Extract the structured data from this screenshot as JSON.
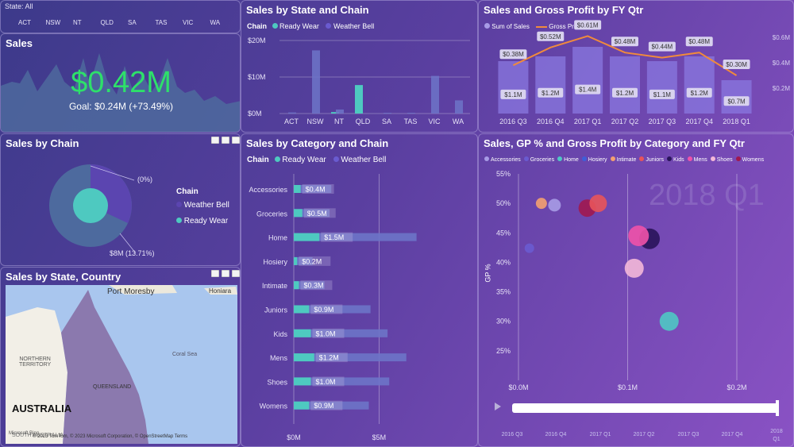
{
  "slicer": {
    "title": "State: All",
    "states": [
      "ACT",
      "NSW",
      "NT",
      "QLD",
      "SA",
      "TAS",
      "VIC",
      "WA"
    ]
  },
  "sales_card": {
    "title": "Sales",
    "value": "$0.42M",
    "goal": "Goal: $0.24M (+73.49%)"
  },
  "chain_pie": {
    "title": "Sales by Chain",
    "legend_title": "Chain",
    "legend": [
      "Weather Bell",
      "Ready Wear"
    ],
    "label_small": "(0%)",
    "label_big": "$8M (13.71%)",
    "colors": {
      "weather_bell": "#5b45b0",
      "ready_wear": "#4ec9c0"
    }
  },
  "map": {
    "title": "Sales by State, Country",
    "labels": {
      "port_moresby": "Port Moresby",
      "honiara": "Honiara",
      "northern_territory_1": "NORTHERN",
      "northern_territory_2": "TERRITORY",
      "coral_sea": "Coral Sea",
      "queensland": "QUEENSLAND",
      "australia": "AUSTRALIA",
      "south_australia": "SOUTH AUSTRALIA"
    },
    "attribution": "© 2023 TomTom, © 2023 Microsoft Corporation, © OpenStreetMap  Terms",
    "bing": "Microsoft Bing"
  },
  "state_chain": {
    "title": "Sales by State and Chain",
    "legend_title": "Chain",
    "legend": [
      "Ready Wear",
      "Weather Bell"
    ]
  },
  "category_chain": {
    "title": "Sales by Category and Chain",
    "legend_title": "Chain",
    "legend": [
      "Ready Wear",
      "Weather Bell"
    ]
  },
  "fy_qtr": {
    "title": "Sales and Gross Profit by FY Qtr",
    "legend": [
      "Sum of Sales",
      "Gross Profit"
    ],
    "right_ticks": [
      "$0.6M",
      "$0.4M",
      "$0.2M"
    ]
  },
  "scatter": {
    "title": "Sales, GP % and Gross Profit by Category and FY Qtr",
    "legend": [
      "Accessories",
      "Groceries",
      "Home",
      "Hosiery",
      "Intimate",
      "Juniors",
      "Kids",
      "Mens",
      "Shoes",
      "Womens"
    ],
    "legend_colors": [
      "#a79be6",
      "#6a5bd0",
      "#4fc8c4",
      "#3f5ed8",
      "#f4a070",
      "#e8545a",
      "#2a145a",
      "#f052a8",
      "#f4b8d8",
      "#a01850"
    ],
    "watermark": "2018 Q1",
    "ylabel": "GP %",
    "play_labels": [
      "2016 Q3",
      "2016 Q4",
      "2017 Q1",
      "2017 Q2",
      "2017 Q3",
      "2017 Q4",
      "2018",
      "Q1"
    ]
  },
  "chart_data": [
    {
      "type": "bar",
      "title": "Sales by State and Chain",
      "categories": [
        "ACT",
        "NSW",
        "NT",
        "QLD",
        "SA",
        "TAS",
        "VIC",
        "WA"
      ],
      "series": [
        {
          "name": "Ready Wear",
          "values": [
            0,
            0,
            0.4,
            7.8,
            0,
            0,
            0,
            0
          ]
        },
        {
          "name": "Weather Bell",
          "values": [
            0.3,
            17.3,
            1.1,
            0,
            0.2,
            0.2,
            10.3,
            3.6
          ]
        }
      ],
      "yticks": [
        "$0M",
        "$10M",
        "$20M"
      ],
      "ylim": [
        0,
        20
      ]
    },
    {
      "type": "bar",
      "title": "Sales by Category and Chain",
      "categories": [
        "Accessories",
        "Groceries",
        "Home",
        "Hosiery",
        "Intimate",
        "Juniors",
        "Kids",
        "Mens",
        "Shoes",
        "Womens"
      ],
      "series": [
        {
          "name": "Ready Wear",
          "values": [
            0.4,
            0.5,
            1.5,
            0.2,
            0.3,
            0.9,
            1.0,
            1.2,
            1.0,
            0.9
          ]
        },
        {
          "name": "Weather Bell",
          "values": [
            2.2,
            2.1,
            7.2,
            1.1,
            1.8,
            4.5,
            5.5,
            6.6,
            5.6,
            4.4
          ]
        }
      ],
      "labels": [
        "$0.4M",
        "$0.5M",
        "$1.5M",
        "$0.2M",
        "$0.3M",
        "$0.9M",
        "$1.0M",
        "$1.2M",
        "$1.0M",
        "$0.9M"
      ],
      "xticks": [
        "$0M",
        "$5M"
      ],
      "xlim": [
        0,
        9.5
      ]
    },
    {
      "type": "bar",
      "title": "Sales and Gross Profit by FY Qtr",
      "categories": [
        "2016 Q3",
        "2016 Q4",
        "2017 Q1",
        "2017 Q2",
        "2017 Q3",
        "2017 Q4",
        "2018 Q1"
      ],
      "series": [
        {
          "name": "Sum of Sales",
          "values": [
            1.1,
            1.2,
            1.4,
            1.2,
            1.1,
            1.2,
            0.7
          ],
          "labels": [
            "$1.1M",
            "$1.2M",
            "$1.4M",
            "$1.2M",
            "$1.1M",
            "$1.2M",
            "$0.7M"
          ]
        },
        {
          "name": "Gross Profit",
          "values": [
            0.38,
            0.52,
            0.61,
            0.48,
            0.44,
            0.48,
            0.3
          ],
          "labels": [
            "$0.38M",
            "$0.52M",
            "$0.61M",
            "$0.48M",
            "$0.44M",
            "$0.48M",
            "$0.30M"
          ]
        }
      ]
    },
    {
      "type": "scatter",
      "title": "Sales, GP % and Gross Profit by Category and FY Qtr",
      "xticks": [
        "$0.0M",
        "$0.1M",
        "$0.2M"
      ],
      "yticks": [
        "55%",
        "50%",
        "45%",
        "40%",
        "35%",
        "30%",
        "25%"
      ],
      "xlim": [
        0,
        0.24
      ],
      "ylim": [
        20,
        55
      ],
      "points": [
        {
          "name": "Groceries",
          "x": 0.01,
          "y": 42.4,
          "r": 6
        },
        {
          "name": "Intimate",
          "x": 0.021,
          "y": 50.0,
          "r": 7
        },
        {
          "name": "Accessories",
          "x": 0.033,
          "y": 49.7,
          "r": 8
        },
        {
          "name": "Womens",
          "x": 0.063,
          "y": 49.2,
          "r": 11
        },
        {
          "name": "Juniors",
          "x": 0.073,
          "y": 50.0,
          "r": 11
        },
        {
          "name": "Kids",
          "x": 0.12,
          "y": 44.0,
          "r": 13
        },
        {
          "name": "Mens",
          "x": 0.11,
          "y": 44.5,
          "r": 13
        },
        {
          "name": "Shoes",
          "x": 0.106,
          "y": 39.0,
          "r": 12
        },
        {
          "name": "Home",
          "x": 0.138,
          "y": 30.0,
          "r": 12
        }
      ]
    }
  ]
}
